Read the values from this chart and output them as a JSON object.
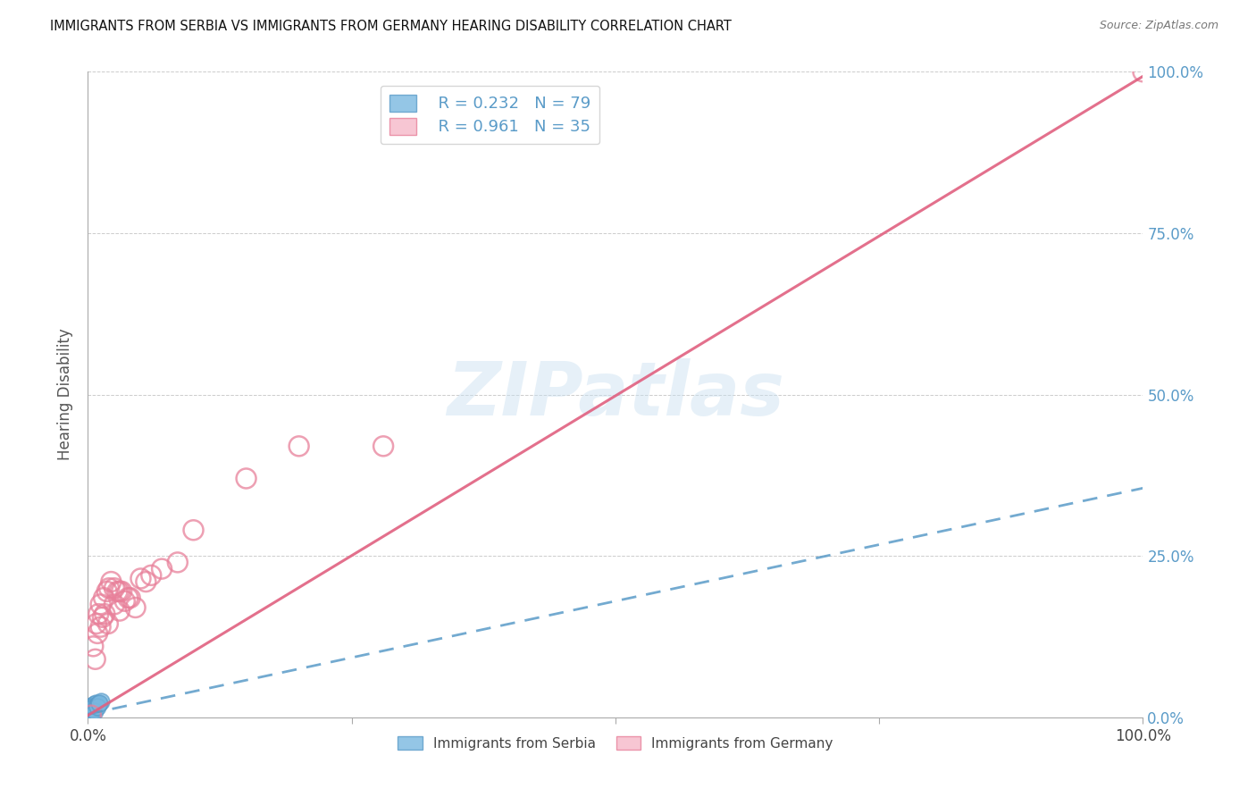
{
  "title": "IMMIGRANTS FROM SERBIA VS IMMIGRANTS FROM GERMANY HEARING DISABILITY CORRELATION CHART",
  "source": "Source: ZipAtlas.com",
  "ylabel": "Hearing Disability",
  "xlim": [
    0,
    1.0
  ],
  "ylim": [
    0,
    1.0
  ],
  "grid_ticks": [
    0.0,
    0.25,
    0.5,
    0.75,
    1.0
  ],
  "xtick_labels_show": [
    "0.0%",
    "",
    "",
    "",
    "100.0%"
  ],
  "ytick_right_labels": [
    "0.0%",
    "25.0%",
    "50.0%",
    "75.0%",
    "100.0%"
  ],
  "serbia_color": "#7ab8e0",
  "serbia_edge_color": "#5a9bc8",
  "germany_color": "#f5b8c8",
  "germany_edge_color": "#e8809a",
  "serbia_R": 0.232,
  "serbia_N": 79,
  "germany_R": 0.961,
  "germany_N": 35,
  "watermark": "ZIPatlas",
  "legend_label_1": "Immigrants from Serbia",
  "legend_label_2": "Immigrants from Germany",
  "serbia_trend_slope": 0.35,
  "serbia_trend_intercept": 0.005,
  "germany_trend_slope": 0.99,
  "germany_trend_intercept": 0.003,
  "serbia_x": [
    0.002,
    0.003,
    0.001,
    0.004,
    0.005,
    0.002,
    0.003,
    0.001,
    0.002,
    0.004,
    0.001,
    0.002,
    0.003,
    0.001,
    0.002,
    0.005,
    0.003,
    0.002,
    0.001,
    0.004,
    0.001,
    0.002,
    0.001,
    0.003,
    0.002,
    0.001,
    0.004,
    0.002,
    0.003,
    0.001,
    0.006,
    0.002,
    0.003,
    0.001,
    0.002,
    0.001,
    0.003,
    0.002,
    0.001,
    0.002,
    0.004,
    0.001,
    0.002,
    0.003,
    0.001,
    0.002,
    0.001,
    0.003,
    0.002,
    0.001,
    0.005,
    0.002,
    0.003,
    0.001,
    0.002,
    0.004,
    0.001,
    0.002,
    0.003,
    0.001,
    0.007,
    0.002,
    0.001,
    0.003,
    0.002,
    0.001,
    0.004,
    0.002,
    0.003,
    0.001,
    0.002,
    0.001,
    0.003,
    0.008,
    0.01,
    0.012,
    0.006,
    0.009,
    0.011
  ],
  "serbia_y": [
    0.008,
    0.012,
    0.006,
    0.01,
    0.015,
    0.004,
    0.014,
    0.005,
    0.011,
    0.007,
    0.009,
    0.013,
    0.003,
    0.005,
    0.011,
    0.018,
    0.002,
    0.016,
    0.006,
    0.014,
    0.004,
    0.009,
    0.007,
    0.01,
    0.005,
    0.004,
    0.012,
    0.008,
    0.01,
    0.003,
    0.02,
    0.006,
    0.013,
    0.004,
    0.009,
    0.005,
    0.011,
    0.007,
    0.004,
    0.01,
    0.015,
    0.003,
    0.008,
    0.012,
    0.006,
    0.009,
    0.005,
    0.013,
    0.009,
    0.006,
    0.019,
    0.007,
    0.01,
    0.004,
    0.008,
    0.015,
    0.005,
    0.011,
    0.013,
    0.003,
    0.022,
    0.006,
    0.004,
    0.01,
    0.007,
    0.005,
    0.016,
    0.009,
    0.012,
    0.005,
    0.011,
    0.003,
    0.014,
    0.018,
    0.02,
    0.025,
    0.01,
    0.017,
    0.022
  ],
  "germany_x": [
    0.003,
    0.008,
    0.012,
    0.015,
    0.018,
    0.022,
    0.01,
    0.025,
    0.005,
    0.02,
    0.007,
    0.03,
    0.014,
    0.035,
    0.012,
    0.028,
    0.04,
    0.016,
    0.05,
    0.009,
    0.045,
    0.019,
    0.06,
    0.025,
    0.038,
    0.055,
    0.03,
    0.07,
    0.032,
    0.085,
    0.1,
    0.15,
    0.2,
    0.28,
    1.0
  ],
  "germany_y": [
    0.003,
    0.145,
    0.175,
    0.185,
    0.195,
    0.21,
    0.16,
    0.2,
    0.11,
    0.2,
    0.09,
    0.165,
    0.155,
    0.18,
    0.14,
    0.195,
    0.185,
    0.16,
    0.215,
    0.13,
    0.17,
    0.145,
    0.22,
    0.175,
    0.185,
    0.21,
    0.195,
    0.23,
    0.195,
    0.24,
    0.29,
    0.37,
    0.42,
    0.42,
    1.0
  ]
}
